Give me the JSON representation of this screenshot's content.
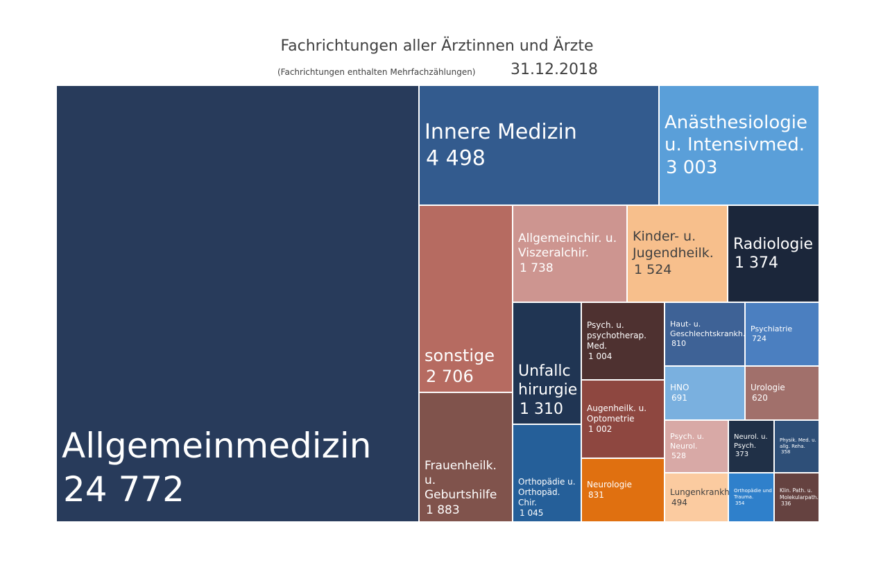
{
  "chart_data": {
    "type": "treemap",
    "title": "Fachrichtungen aller Ärztinnen und Ärzte",
    "subtitle": "(Fachrichtungen enthalten Mehrfachzählungen)",
    "date": "31.12.2018",
    "items": [
      {
        "label": "Allgemeinmedizin",
        "value": 24772,
        "display": "24 772",
        "color": "#283b5b"
      },
      {
        "label": "Innere Medizin",
        "value": 4498,
        "display": "4 498",
        "color": "#335b8e"
      },
      {
        "label": "Anästhesiologie\nu. Intensivmed.",
        "value": 3003,
        "display": "3 003",
        "color": "#5a9fd9"
      },
      {
        "label": "sonstige",
        "value": 2706,
        "display": "2 706",
        "color": "#b66b61"
      },
      {
        "label": "Frauenheilk.\nu.\nGeburtshilfe",
        "value": 1883,
        "display": "1 883",
        "color": "#80534c"
      },
      {
        "label": "Allgemeinchir. u.\nViszeralchir.",
        "value": 1738,
        "display": "1 738",
        "color": "#cd9590"
      },
      {
        "label": "Kinder- u.\nJugendheilk.",
        "value": 1524,
        "display": "1 524",
        "color": "#f7bf8c"
      },
      {
        "label": "Radiologie",
        "value": 1374,
        "display": "1 374",
        "color": "#1b263a"
      },
      {
        "label": "Unfallc\nhirurgie",
        "value": 1310,
        "display": "1 310",
        "color": "#203553"
      },
      {
        "label": "Orthopädie u.\nOrthopäd. Chir.",
        "value": 1045,
        "display": "1 045",
        "color": "#255f99"
      },
      {
        "label": "Psych. u.\npsychotherap.\nMed.",
        "value": 1004,
        "display": "1 004",
        "color": "#4e3130"
      },
      {
        "label": "Augenheilk. u.\nOptometrie",
        "value": 1002,
        "display": "1 002",
        "color": "#8e4740"
      },
      {
        "label": "Neurologie",
        "value": 831,
        "display": "831",
        "color": "#e07010"
      },
      {
        "label": "Haut- u.\nGeschlechtskrankh.",
        "value": 810,
        "display": "810",
        "color": "#3e6296"
      },
      {
        "label": "Psychiatrie",
        "value": 724,
        "display": "724",
        "color": "#4b7fc0"
      },
      {
        "label": "HNO",
        "value": 691,
        "display": "691",
        "color": "#7ab0df"
      },
      {
        "label": "Urologie",
        "value": 620,
        "display": "620",
        "color": "#a1706b"
      },
      {
        "label": "Psych. u.\nNeurol.",
        "value": 528,
        "display": "528",
        "color": "#d8a9a6"
      },
      {
        "label": "Neurol. u.\nPsych.",
        "value": 373,
        "display": "373",
        "color": "#203047"
      },
      {
        "label": "Physik. Med. u.\nallg. Reha.",
        "value": 358,
        "display": "358",
        "color": "#2e4f78"
      },
      {
        "label": "Lungenkrankh.",
        "value": 494,
        "display": "494",
        "color": "#fbcba0"
      },
      {
        "label": "Orthopädie und\nTrauma.",
        "value": 354,
        "display": "354",
        "color": "#2f80cb"
      },
      {
        "label": "Klin. Path. u.\nMolekularpath.",
        "value": 336,
        "display": "336",
        "color": "#654240"
      }
    ]
  }
}
